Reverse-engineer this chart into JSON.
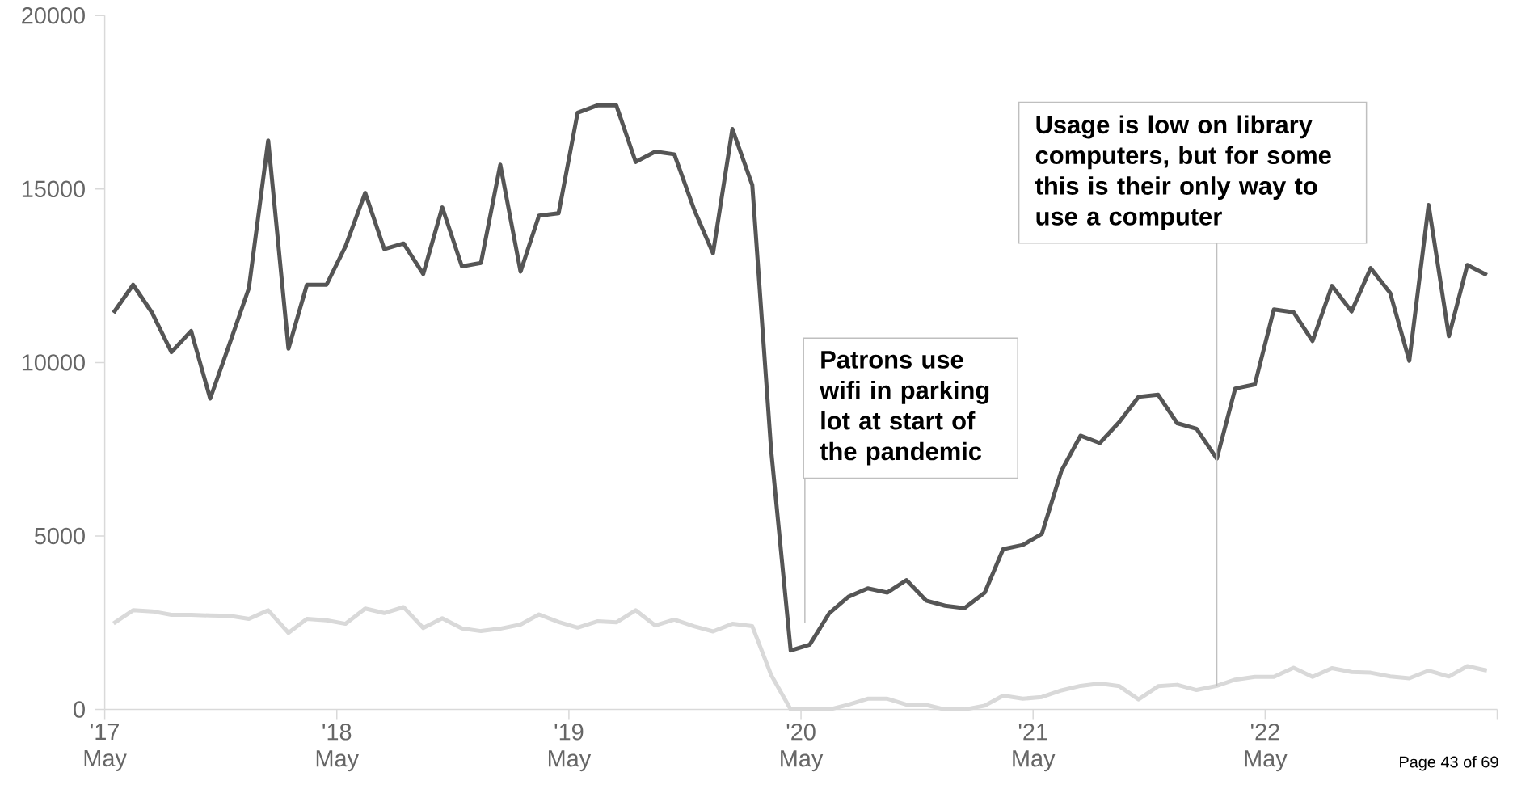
{
  "chart_data": {
    "type": "line",
    "x": [
      "2017-05-15",
      "2017-06-15",
      "2017-07-15",
      "2017-08-15",
      "2017-09-15",
      "2017-10-15",
      "2017-11-15",
      "2017-12-15",
      "2018-01-15",
      "2018-02-15",
      "2018-03-15",
      "2018-04-15",
      "2018-05-15",
      "2018-06-15",
      "2018-07-15",
      "2018-08-15",
      "2018-09-15",
      "2018-10-15",
      "2018-11-15",
      "2018-12-15",
      "2019-01-15",
      "2019-02-15",
      "2019-03-15",
      "2019-04-15",
      "2019-05-15",
      "2019-06-15",
      "2019-07-15",
      "2019-08-15",
      "2019-09-15",
      "2019-10-15",
      "2019-11-15",
      "2019-12-15",
      "2020-01-15",
      "2020-02-15",
      "2020-03-15",
      "2020-04-15",
      "2020-05-15",
      "2020-06-15",
      "2020-07-15",
      "2020-08-15",
      "2020-09-15",
      "2020-10-15",
      "2020-11-15",
      "2020-12-15",
      "2021-01-15",
      "2021-02-15",
      "2021-03-15",
      "2021-04-15",
      "2021-05-15",
      "2021-06-15",
      "2021-07-15",
      "2021-08-15",
      "2021-09-15",
      "2021-10-15",
      "2021-11-15",
      "2021-12-15",
      "2022-01-15",
      "2022-02-15",
      "2022-03-15",
      "2022-04-15",
      "2022-05-15",
      "2022-06-15",
      "2022-07-15",
      "2022-08-15",
      "2022-09-15",
      "2022-10-15",
      "2022-11-15",
      "2022-12-15",
      "2023-01-15",
      "2023-02-15",
      "2023-03-15",
      "2023-04-15"
    ],
    "series": [
      {
        "color": "#555555",
        "values": [
          11430,
          12240,
          11430,
          10300,
          10910,
          8960,
          10560,
          12140,
          16400,
          10400,
          12240,
          12240,
          13350,
          14890,
          13270,
          13430,
          12550,
          14470,
          12770,
          12870,
          15700,
          12620,
          14230,
          14300,
          17200,
          17410,
          17410,
          15780,
          16080,
          16000,
          14420,
          13150,
          16730,
          15110,
          7500,
          1700,
          1870,
          2780,
          3250,
          3490,
          3370,
          3730,
          3140,
          2990,
          2920,
          3370,
          4620,
          4740,
          5060,
          6880,
          7890,
          7680,
          8290,
          9010,
          9070,
          8250,
          8090,
          7230,
          9250,
          9370,
          11530,
          11450,
          10620,
          12210,
          11470,
          12720,
          12000,
          10050,
          14540,
          10760,
          12810,
          12520
        ]
      },
      {
        "color": "#d9d9d9",
        "values": [
          2480,
          2860,
          2830,
          2730,
          2730,
          2710,
          2700,
          2610,
          2860,
          2210,
          2610,
          2570,
          2470,
          2910,
          2780,
          2950,
          2350,
          2630,
          2340,
          2260,
          2330,
          2450,
          2740,
          2520,
          2360,
          2540,
          2510,
          2860,
          2420,
          2590,
          2400,
          2250,
          2470,
          2400,
          1000,
          0,
          0,
          0,
          140,
          310,
          310,
          140,
          130,
          0,
          0,
          110,
          400,
          310,
          360,
          550,
          680,
          750,
          670,
          290,
          670,
          710,
          560,
          680,
          860,
          940,
          940,
          1200,
          940,
          1190,
          1080,
          1060,
          950,
          900,
          1120,
          950,
          1250,
          1120
        ]
      }
    ],
    "xlim": [
      "2017-05",
      "2023-05"
    ],
    "xticks": [
      {
        "value": "2017-05",
        "label": "'17 May"
      },
      {
        "value": "2018-05",
        "label": "'18 May"
      },
      {
        "value": "2019-05",
        "label": "'19 May"
      },
      {
        "value": "2020-05",
        "label": "'20 May"
      },
      {
        "value": "2021-05",
        "label": "'21 May"
      },
      {
        "value": "2022-05",
        "label": "'22 May"
      },
      {
        "value": "2023-05",
        "label": null
      }
    ],
    "ylim": [
      0,
      20000
    ],
    "yticks": [
      0,
      5000,
      10000,
      15000,
      20000
    ],
    "grid": false,
    "marker": "none",
    "annotations": [
      "Patrons use wifi in parking lot at start of the pandemic",
      {
        "text": "Usage is low on library computers, but for some this is their only way to use a computer",
        "x": "2022-02-15",
        "y": 680
      },
      "Page 43 of 69"
    ]
  }
}
